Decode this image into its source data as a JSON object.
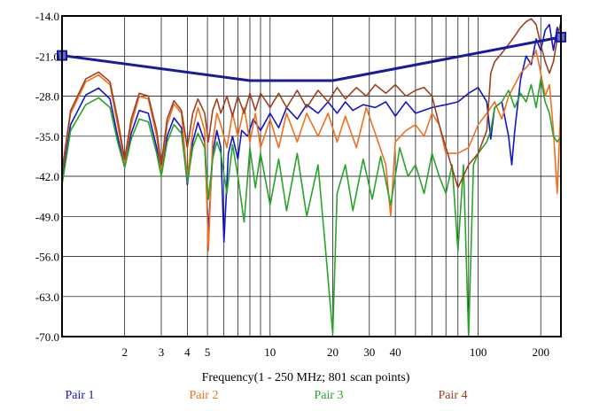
{
  "chart_data": {
    "type": "line",
    "xlabel": "Frequency(1 - 250 MHz; 801 scan points)",
    "ylabel": "",
    "xscale": "log",
    "xlim": [
      1,
      250
    ],
    "ylim": [
      -70.0,
      -14.0
    ],
    "x_ticks": [
      2,
      3,
      4,
      5,
      10,
      20,
      30,
      40,
      100,
      200
    ],
    "x_tick_labels": [
      "2",
      "3",
      "4",
      "5",
      "10",
      "20",
      "30",
      "40",
      "100",
      "200"
    ],
    "x_minor_gridlines": [
      2,
      3,
      4,
      5,
      6,
      7,
      8,
      9,
      10,
      20,
      30,
      40,
      50,
      60,
      70,
      80,
      90,
      100,
      200
    ],
    "y_ticks": [
      -14.0,
      -21.0,
      -28.0,
      -35.0,
      -42.0,
      -49.0,
      -56.0,
      -63.0,
      -70.0
    ],
    "y_tick_labels": [
      "-14.0",
      "-21.0",
      "-28.0",
      "-35.0",
      "-42.0",
      "-49.0",
      "-56.0",
      "-63.0",
      "-70.0"
    ],
    "grid": true,
    "legend_position": "bottom",
    "limit_line": {
      "color": "#1a1a9e",
      "points": [
        [
          1,
          -20.9
        ],
        [
          8,
          -25.3
        ],
        [
          20,
          -25.3
        ],
        [
          250,
          -17.7
        ]
      ]
    },
    "series": [
      {
        "name": "Pair 1",
        "color": "#1515c8",
        "points": [
          [
            1,
            -42.6
          ],
          [
            1.1,
            -33.0
          ],
          [
            1.3,
            -27.8
          ],
          [
            1.5,
            -26.6
          ],
          [
            1.7,
            -28.5
          ],
          [
            1.85,
            -35.0
          ],
          [
            2.0,
            -40.4
          ],
          [
            2.15,
            -34.5
          ],
          [
            2.35,
            -30.5
          ],
          [
            2.6,
            -31.0
          ],
          [
            2.85,
            -37.0
          ],
          [
            3.0,
            -41.5
          ],
          [
            3.2,
            -35.0
          ],
          [
            3.45,
            -31.8
          ],
          [
            3.75,
            -33.5
          ],
          [
            4.0,
            -43.5
          ],
          [
            4.25,
            -36.0
          ],
          [
            4.5,
            -32.6
          ],
          [
            4.85,
            -36.0
          ],
          [
            5.05,
            -52.0
          ],
          [
            5.3,
            -38.0
          ],
          [
            5.55,
            -34.0
          ],
          [
            5.8,
            -37.0
          ],
          [
            6.0,
            -53.5
          ],
          [
            6.3,
            -38.0
          ],
          [
            6.6,
            -35.0
          ],
          [
            7.0,
            -39.0
          ],
          [
            7.3,
            -34.0
          ],
          [
            7.8,
            -35.0
          ],
          [
            8.3,
            -32.0
          ],
          [
            9.0,
            -34.0
          ],
          [
            10,
            -31.0
          ],
          [
            11,
            -33.5
          ],
          [
            12,
            -30.0
          ],
          [
            13.5,
            -32.0
          ],
          [
            15,
            -29.5
          ],
          [
            17,
            -31.0
          ],
          [
            19,
            -29.0
          ],
          [
            21,
            -31.0
          ],
          [
            23,
            -29.0
          ],
          [
            25,
            -30.5
          ],
          [
            28,
            -29.5
          ],
          [
            32,
            -30.0
          ],
          [
            36,
            -29.0
          ],
          [
            40,
            -31.5
          ],
          [
            45,
            -29.0
          ],
          [
            50,
            -31.0
          ],
          [
            60,
            -30.0
          ],
          [
            70,
            -29.5
          ],
          [
            80,
            -29.0
          ],
          [
            90,
            -27.5
          ],
          [
            100,
            -26.5
          ],
          [
            110,
            -29.0
          ],
          [
            115,
            -35.5
          ],
          [
            120,
            -30.0
          ],
          [
            130,
            -29.0
          ],
          [
            140,
            -35.0
          ],
          [
            145,
            -40.0
          ],
          [
            150,
            -34.0
          ],
          [
            160,
            -25.0
          ],
          [
            170,
            -21.0
          ],
          [
            180,
            -22.5
          ],
          [
            190,
            -18.0
          ],
          [
            200,
            -20.0
          ],
          [
            210,
            -16.5
          ],
          [
            220,
            -15.5
          ],
          [
            230,
            -20.0
          ],
          [
            240,
            -16.0
          ],
          [
            250,
            -18.0
          ]
        ]
      },
      {
        "name": "Pair 2",
        "color": "#f0701e",
        "points": [
          [
            1,
            -41.5
          ],
          [
            1.1,
            -31.0
          ],
          [
            1.3,
            -25.5
          ],
          [
            1.5,
            -24.3
          ],
          [
            1.7,
            -26.0
          ],
          [
            1.85,
            -33.0
          ],
          [
            2.0,
            -39.7
          ],
          [
            2.15,
            -33.0
          ],
          [
            2.35,
            -28.0
          ],
          [
            2.6,
            -28.5
          ],
          [
            2.85,
            -35.0
          ],
          [
            3.0,
            -41.0
          ],
          [
            3.2,
            -33.0
          ],
          [
            3.45,
            -29.4
          ],
          [
            3.75,
            -31.0
          ],
          [
            4.0,
            -42.5
          ],
          [
            4.25,
            -34.0
          ],
          [
            4.5,
            -30.0
          ],
          [
            4.85,
            -34.0
          ],
          [
            5.05,
            -55.0
          ],
          [
            5.3,
            -36.0
          ],
          [
            5.55,
            -31.0
          ],
          [
            5.8,
            -33.0
          ],
          [
            6.2,
            -37.0
          ],
          [
            6.6,
            -31.0
          ],
          [
            7.0,
            -35.0
          ],
          [
            7.5,
            -30.0
          ],
          [
            8,
            -36.0
          ],
          [
            8.5,
            -31.0
          ],
          [
            9,
            -37.0
          ],
          [
            10,
            -32.0
          ],
          [
            11,
            -37.0
          ],
          [
            12,
            -31.0
          ],
          [
            13.5,
            -36.0
          ],
          [
            15,
            -31.0
          ],
          [
            17,
            -35.0
          ],
          [
            19,
            -31.0
          ],
          [
            21,
            -36.0
          ],
          [
            23,
            -31.5
          ],
          [
            26,
            -37.0
          ],
          [
            29,
            -30.0
          ],
          [
            32,
            -34.5
          ],
          [
            36,
            -40.0
          ],
          [
            38,
            -49.0
          ],
          [
            40,
            -36.0
          ],
          [
            45,
            -34.0
          ],
          [
            50,
            -33.0
          ],
          [
            55,
            -35.0
          ],
          [
            60,
            -31.0
          ],
          [
            65,
            -33.0
          ],
          [
            70,
            -38.0
          ],
          [
            80,
            -38.0
          ],
          [
            90,
            -37.0
          ],
          [
            100,
            -33.0
          ],
          [
            110,
            -31.0
          ],
          [
            120,
            -29.0
          ],
          [
            130,
            -32.0
          ],
          [
            140,
            -28.0
          ],
          [
            150,
            -26.0
          ],
          [
            160,
            -24.0
          ],
          [
            170,
            -23.0
          ],
          [
            180,
            -22.0
          ],
          [
            190,
            -20.0
          ],
          [
            200,
            -24.0
          ],
          [
            210,
            -28.0
          ],
          [
            220,
            -26.0
          ],
          [
            230,
            -34.0
          ],
          [
            240,
            -45.0
          ],
          [
            250,
            -29.0
          ]
        ]
      },
      {
        "name": "Pair 3",
        "color": "#28a428",
        "points": [
          [
            1,
            -43.5
          ],
          [
            1.1,
            -34.0
          ],
          [
            1.3,
            -29.5
          ],
          [
            1.5,
            -28.3
          ],
          [
            1.7,
            -30.0
          ],
          [
            1.85,
            -36.0
          ],
          [
            2.0,
            -40.5
          ],
          [
            2.15,
            -35.5
          ],
          [
            2.35,
            -32.0
          ],
          [
            2.6,
            -32.5
          ],
          [
            2.85,
            -38.0
          ],
          [
            3.0,
            -42.0
          ],
          [
            3.2,
            -36.0
          ],
          [
            3.45,
            -33.0
          ],
          [
            3.75,
            -34.5
          ],
          [
            4.0,
            -43.0
          ],
          [
            4.25,
            -37.0
          ],
          [
            4.5,
            -34.5
          ],
          [
            4.85,
            -37.0
          ],
          [
            5.05,
            -46.0
          ],
          [
            5.3,
            -39.0
          ],
          [
            5.55,
            -36.0
          ],
          [
            5.8,
            -38.0
          ],
          [
            6.2,
            -45.0
          ],
          [
            6.6,
            -36.5
          ],
          [
            7.0,
            -42.0
          ],
          [
            7.5,
            -50.0
          ],
          [
            8,
            -37.0
          ],
          [
            8.5,
            -44.0
          ],
          [
            9,
            -38.0
          ],
          [
            10,
            -47.0
          ],
          [
            11,
            -39.0
          ],
          [
            12,
            -48.0
          ],
          [
            13.5,
            -38.0
          ],
          [
            15,
            -49.0
          ],
          [
            17,
            -40.0
          ],
          [
            18.5,
            -55.0
          ],
          [
            20,
            -69.5
          ],
          [
            21,
            -45.0
          ],
          [
            23,
            -40.0
          ],
          [
            25,
            -48.0
          ],
          [
            28,
            -39.0
          ],
          [
            31,
            -46.0
          ],
          [
            34,
            -38.5
          ],
          [
            38,
            -47.0
          ],
          [
            42,
            -37.0
          ],
          [
            46,
            -42.0
          ],
          [
            50,
            -40.0
          ],
          [
            55,
            -45.0
          ],
          [
            60,
            -38.0
          ],
          [
            65,
            -42.0
          ],
          [
            70,
            -45.0
          ],
          [
            75,
            -40.0
          ],
          [
            80,
            -55.0
          ],
          [
            85,
            -40.0
          ],
          [
            90,
            -70.0
          ],
          [
            95,
            -40.0
          ],
          [
            100,
            -38.0
          ],
          [
            110,
            -36.0
          ],
          [
            115,
            -34.0
          ],
          [
            120,
            -30.0
          ],
          [
            130,
            -29.0
          ],
          [
            140,
            -27.0
          ],
          [
            150,
            -30.0
          ],
          [
            160,
            -27.5
          ],
          [
            170,
            -29.0
          ],
          [
            180,
            -26.0
          ],
          [
            190,
            -30.0
          ],
          [
            200,
            -25.0
          ],
          [
            210,
            -29.0
          ],
          [
            220,
            -31.0
          ],
          [
            230,
            -35.0
          ],
          [
            240,
            -36.0
          ],
          [
            250,
            -35.0
          ]
        ]
      },
      {
        "name": "Pair 4",
        "color": "#a0401e",
        "points": [
          [
            1,
            -41.0
          ],
          [
            1.1,
            -30.5
          ],
          [
            1.3,
            -25.0
          ],
          [
            1.5,
            -23.8
          ],
          [
            1.7,
            -25.5
          ],
          [
            1.85,
            -32.0
          ],
          [
            2.0,
            -39.0
          ],
          [
            2.15,
            -32.0
          ],
          [
            2.35,
            -27.5
          ],
          [
            2.6,
            -28.0
          ],
          [
            2.85,
            -34.0
          ],
          [
            3.0,
            -40.0
          ],
          [
            3.2,
            -32.0
          ],
          [
            3.45,
            -28.8
          ],
          [
            3.75,
            -30.5
          ],
          [
            4.0,
            -37.0
          ],
          [
            4.25,
            -31.0
          ],
          [
            4.5,
            -28.5
          ],
          [
            4.85,
            -31.0
          ],
          [
            5.05,
            -36.0
          ],
          [
            5.3,
            -30.5
          ],
          [
            5.55,
            -28.5
          ],
          [
            5.8,
            -31.0
          ],
          [
            6.2,
            -28.0
          ],
          [
            6.6,
            -31.5
          ],
          [
            7.0,
            -28.0
          ],
          [
            7.5,
            -31.0
          ],
          [
            8,
            -27.5
          ],
          [
            8.5,
            -30.5
          ],
          [
            9,
            -27.5
          ],
          [
            10,
            -30.0
          ],
          [
            11,
            -27.5
          ],
          [
            12,
            -30.0
          ],
          [
            13.5,
            -27.0
          ],
          [
            15,
            -30.0
          ],
          [
            17,
            -27.0
          ],
          [
            19,
            -29.0
          ],
          [
            21,
            -26.5
          ],
          [
            23,
            -28.5
          ],
          [
            26,
            -26.5
          ],
          [
            29,
            -28.0
          ],
          [
            32,
            -26.0
          ],
          [
            36,
            -27.5
          ],
          [
            40,
            -26.0
          ],
          [
            45,
            -28.0
          ],
          [
            50,
            -27.0
          ],
          [
            55,
            -26.5
          ],
          [
            60,
            -28.0
          ],
          [
            65,
            -33.0
          ],
          [
            70,
            -37.0
          ],
          [
            80,
            -44.0
          ],
          [
            90,
            -40.0
          ],
          [
            100,
            -38.0
          ],
          [
            110,
            -34.0
          ],
          [
            115,
            -24.0
          ],
          [
            120,
            -22.0
          ],
          [
            130,
            -20.5
          ],
          [
            140,
            -19.0
          ],
          [
            150,
            -17.5
          ],
          [
            160,
            -16.0
          ],
          [
            170,
            -15.0
          ],
          [
            180,
            -14.5
          ],
          [
            190,
            -15.5
          ],
          [
            200,
            -19.0
          ],
          [
            210,
            -22.0
          ],
          [
            220,
            -24.0
          ],
          [
            230,
            -22.0
          ],
          [
            240,
            -18.0
          ],
          [
            250,
            -15.0
          ]
        ]
      }
    ]
  }
}
